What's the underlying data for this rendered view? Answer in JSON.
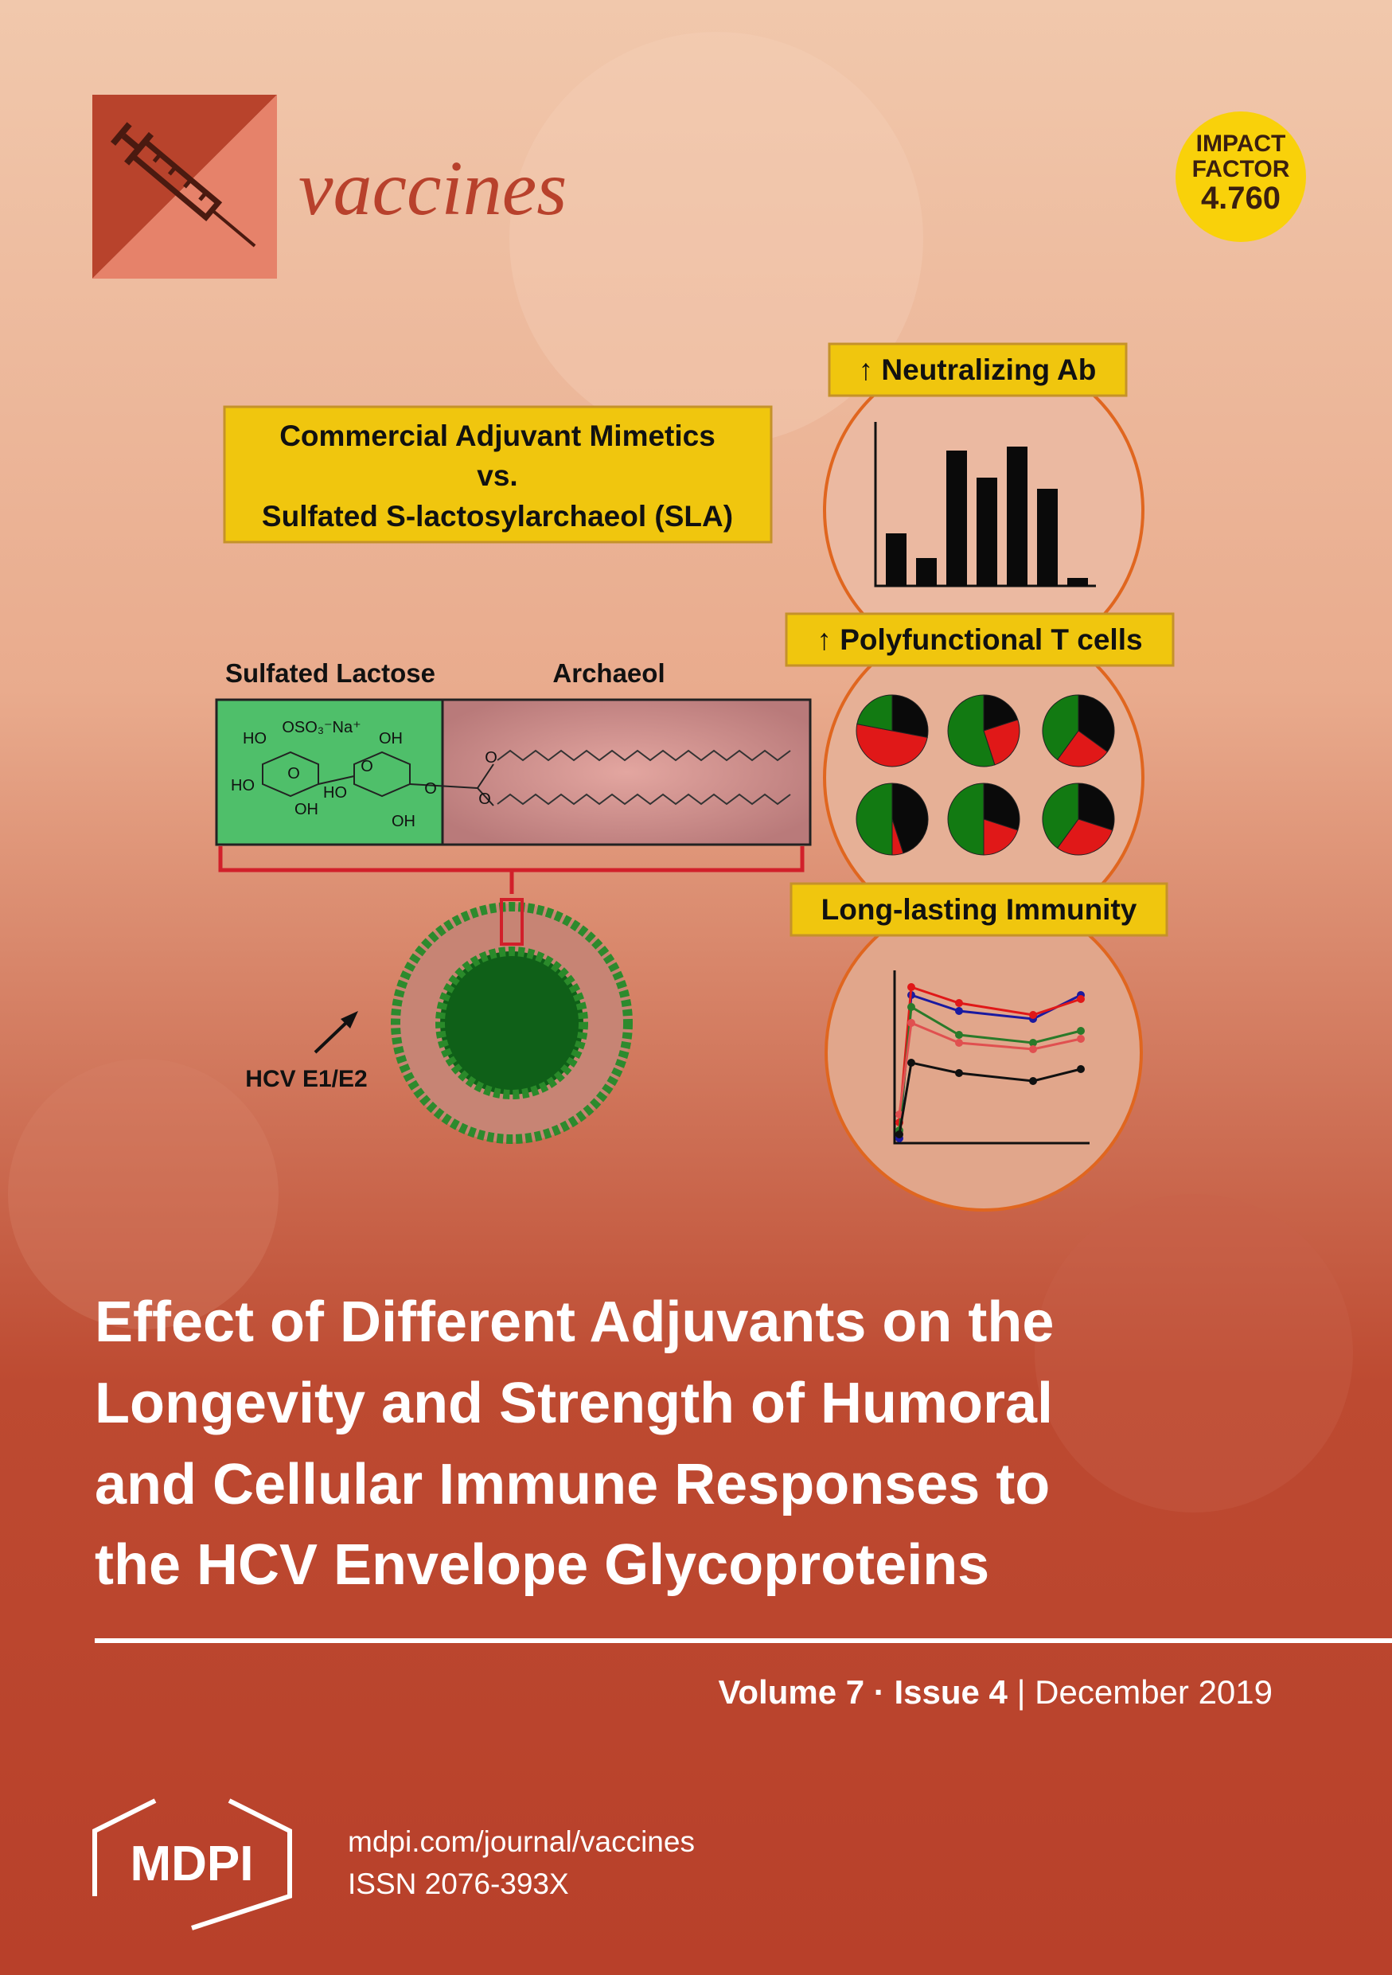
{
  "header": {
    "journal": "vaccines",
    "impact_factor": {
      "line1": "IMPACT",
      "line2": "FACTOR",
      "value": "4.760"
    }
  },
  "graphical_abstract": {
    "comparison": [
      "Commercial Adjuvant Mimetics",
      "vs.",
      "Sulfated S-lactosylarchaeol (SLA)"
    ],
    "structure_labels": [
      "Sulfated Lactose",
      "Archaeol"
    ],
    "chem_labels": [
      "HO",
      "OSO₃⁻Na⁺",
      "OH",
      "HO",
      "O",
      "HO",
      "O",
      "OH",
      "OH",
      "O",
      "O",
      "O"
    ],
    "antigen": "HCV E1/E2",
    "outcomes": [
      "↑ Neutralizing Ab",
      "↑ Polyfunctional T cells",
      "Long-lasting Immunity"
    ]
  },
  "article_title": [
    "Effect of Different Adjuvants on the",
    "Longevity and Strength of Humoral",
    "and Cellular Immune Responses to",
    "the HCV Envelope Glycoproteins"
  ],
  "issue": {
    "volume": "Volume 7",
    "separator": "·",
    "issue": "Issue 4",
    "divider": "|",
    "date": "December 2019"
  },
  "footer": {
    "publisher": "MDPI",
    "url": "mdpi.com/journal/vaccines",
    "issn": "ISSN 2076-393X"
  }
}
